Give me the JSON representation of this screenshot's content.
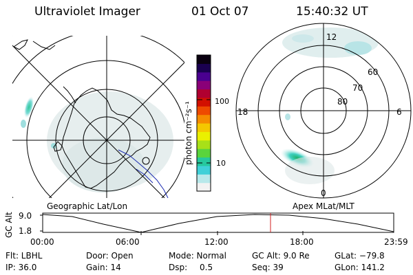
{
  "header": {
    "instrument": "Ultraviolet Imager",
    "date": "01 Oct 07",
    "time": "15:40:32 UT"
  },
  "left_panel": {
    "caption": "Geographic Lat/Lon"
  },
  "right_panel": {
    "caption": "Apex MLat/MLT",
    "mlt_labels": {
      "top": "12",
      "left": "18",
      "right": "6",
      "bottom": "0"
    },
    "lat_labels": [
      "60",
      "70",
      "80"
    ]
  },
  "colorbar": {
    "label": "photon cm⁻²s⁻¹",
    "ticks": [
      "100",
      "10"
    ],
    "colors": [
      "#f2f2f2",
      "#b8e8ea",
      "#3fd0d8",
      "#26c89e",
      "#5ad43c",
      "#a8e018",
      "#eaf000",
      "#f4c800",
      "#f58c00",
      "#ee4a00",
      "#d21000",
      "#b00030",
      "#8a0078",
      "#4a0090",
      "#1a0050",
      "#0a0010"
    ],
    "scale": "log"
  },
  "timeline": {
    "ylabel": "GC Alt",
    "ymax_label": "9.0",
    "ymin_label": "1.8",
    "ticks": [
      "00:00",
      "06:00",
      "12:00",
      "18:00",
      "23:59"
    ],
    "marker_color": "#d02020"
  },
  "footer": {
    "row1": {
      "flt": "Flt: LBHL",
      "door": "Door: Open",
      "mode": "Mode: Normal",
      "gcalt": "GC Alt: 9.0 Re",
      "glat": "GLat: −79.8"
    },
    "row2": {
      "ip": "IP: 36.0",
      "gain": "Gain: 14",
      "dsp_label": "Dsp:",
      "dsp_value": "0.5",
      "seq": "Seq: 39",
      "glon": "GLon: 141.2"
    }
  }
}
